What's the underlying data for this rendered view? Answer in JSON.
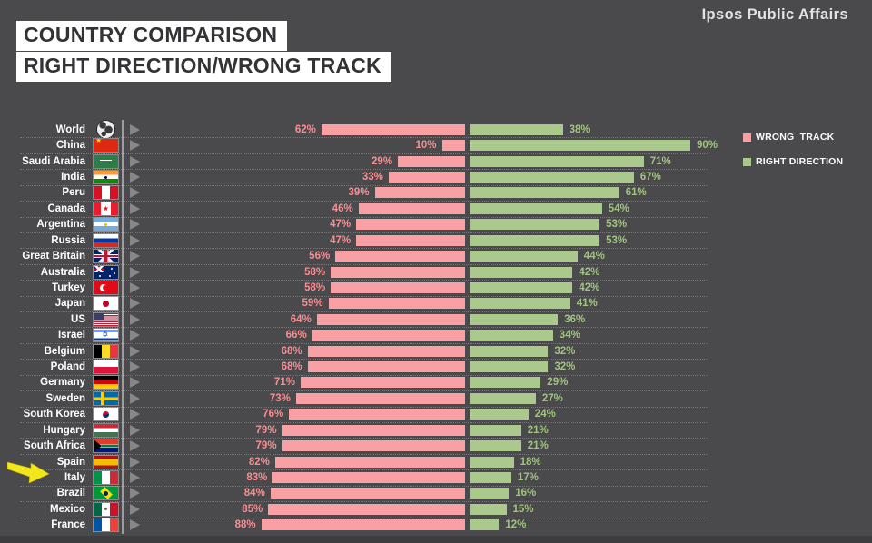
{
  "header": {
    "title_line1": "COUNTRY COMPARISON",
    "title_line2": "RIGHT DIRECTION/WRONG TRACK",
    "brand": "Ipsos Public Affairs"
  },
  "legend": {
    "wrong_label": "WRONG  TRACK",
    "right_label": "RIGHT DIRECTION"
  },
  "colors": {
    "background": "#4a4a4d",
    "wrong_track": "#f8a0a3",
    "right_direction": "#abc98d",
    "arrow": "#f2e71c"
  },
  "chart_data": {
    "type": "bar",
    "orientation": "diverging-horizontal",
    "unit": "%",
    "title": "COUNTRY COMPARISON — RIGHT DIRECTION/WRONG TRACK",
    "legend_position": "right",
    "grid": "dotted row separators",
    "axis_range_each_side": [
      0,
      100
    ],
    "categories": [
      "World",
      "China",
      "Saudi Arabia",
      "India",
      "Peru",
      "Canada",
      "Argentina",
      "Russia",
      "Great Britain",
      "Australia",
      "Turkey",
      "Japan",
      "US",
      "Israel",
      "Belgium",
      "Poland",
      "Germany",
      "Sweden",
      "South Korea",
      "Hungary",
      "South Africa",
      "Spain",
      "Italy",
      "Brazil",
      "Mexico",
      "France"
    ],
    "flags": [
      "world",
      "china",
      "saudi-arabia",
      "india",
      "peru",
      "canada",
      "argentina",
      "russia",
      "great-britain",
      "australia",
      "turkey",
      "japan",
      "us",
      "israel",
      "belgium",
      "poland",
      "germany",
      "sweden",
      "south-korea",
      "hungary",
      "south-africa",
      "spain",
      "italy",
      "brazil",
      "mexico",
      "france"
    ],
    "series": [
      {
        "name": "WRONG TRACK",
        "color": "#f8a0a3",
        "side": "left",
        "values": [
          62,
          10,
          29,
          33,
          39,
          46,
          47,
          47,
          56,
          58,
          58,
          59,
          64,
          66,
          68,
          68,
          71,
          73,
          76,
          79,
          79,
          82,
          83,
          84,
          85,
          88
        ]
      },
      {
        "name": "RIGHT DIRECTION",
        "color": "#abc98d",
        "side": "right",
        "values": [
          38,
          90,
          71,
          67,
          61,
          54,
          53,
          53,
          44,
          42,
          42,
          41,
          36,
          34,
          32,
          32,
          29,
          27,
          24,
          21,
          21,
          18,
          17,
          16,
          15,
          12
        ]
      }
    ],
    "annotation": {
      "type": "arrow",
      "points_to": "Italy",
      "color": "#f2e71c"
    }
  }
}
